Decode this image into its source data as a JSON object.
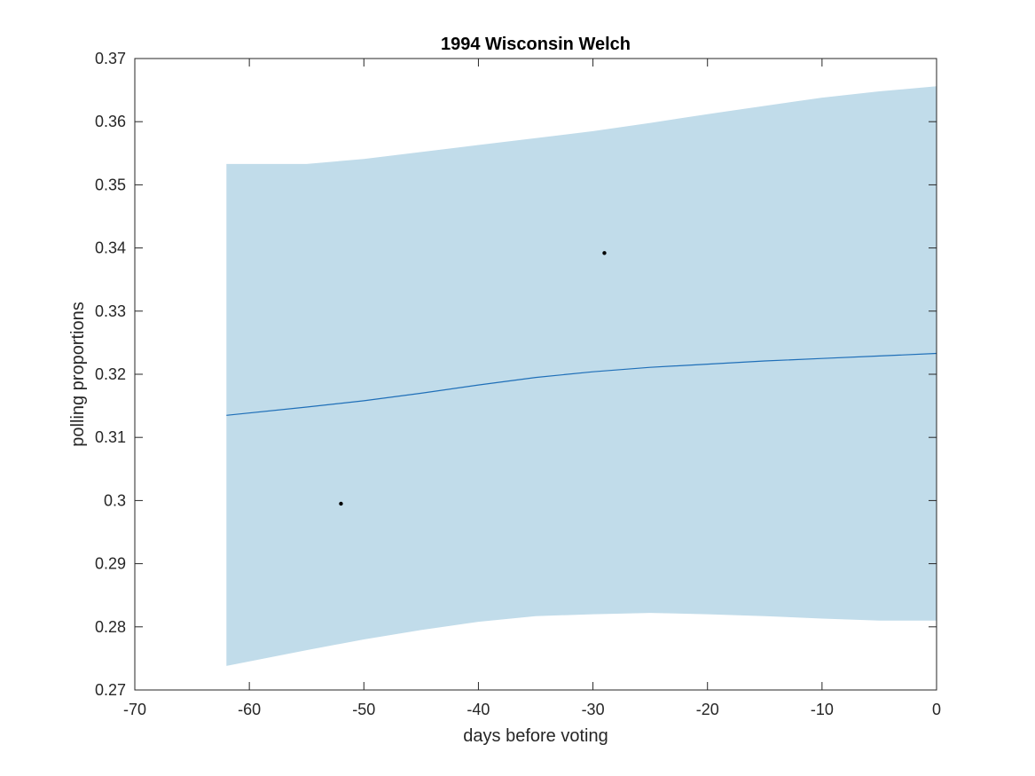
{
  "chart_data": {
    "type": "line",
    "title": "1994 Wisconsin Welch",
    "xlabel": "days before voting",
    "ylabel": "polling proportions",
    "xlim": [
      -70,
      0
    ],
    "ylim": [
      0.27,
      0.37
    ],
    "xticks": [
      -70,
      -60,
      -50,
      -40,
      -30,
      -20,
      -10,
      0
    ],
    "xtick_labels": [
      "-70",
      "-60",
      "-50",
      "-40",
      "-30",
      "-20",
      "-10",
      "0"
    ],
    "yticks": [
      0.27,
      0.28,
      0.29,
      0.3,
      0.31,
      0.32,
      0.33,
      0.34,
      0.35,
      0.36,
      0.37
    ],
    "ytick_labels": [
      "0.27",
      "0.28",
      "0.29",
      "0.3",
      "0.31",
      "0.32",
      "0.33",
      "0.34",
      "0.35",
      "0.36",
      "0.37"
    ],
    "grid": false,
    "legend": "none",
    "band": {
      "x": [
        -62,
        -55,
        -50,
        -45,
        -40,
        -35,
        -30,
        -25,
        -20,
        -15,
        -10,
        -5,
        0
      ],
      "upper": [
        0.3533,
        0.3533,
        0.3541,
        0.3552,
        0.3563,
        0.3574,
        0.3585,
        0.3598,
        0.3612,
        0.3625,
        0.3638,
        0.3648,
        0.3656
      ],
      "lower": [
        0.2738,
        0.2763,
        0.278,
        0.2795,
        0.2808,
        0.2817,
        0.282,
        0.2822,
        0.282,
        0.2817,
        0.2813,
        0.281,
        0.281
      ],
      "color": "#c1dcea"
    },
    "series": [
      {
        "x": [
          -62,
          -55,
          -50,
          -45,
          -40,
          -35,
          -30,
          -25,
          -20,
          -15,
          -10,
          -5,
          0
        ],
        "values": [
          0.3135,
          0.3148,
          0.3158,
          0.317,
          0.3183,
          0.3195,
          0.3204,
          0.3211,
          0.3216,
          0.3221,
          0.3225,
          0.3229,
          0.3233
        ],
        "color": "#1f6fb8"
      }
    ],
    "points": [
      {
        "x": -52,
        "y": 0.2995
      },
      {
        "x": -29,
        "y": 0.3392
      }
    ],
    "point_color": "#000000"
  }
}
